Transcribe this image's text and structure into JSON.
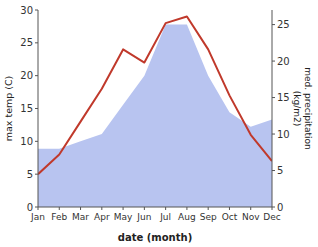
{
  "chart_data": {
    "type": "line",
    "categories": [
      "Jan",
      "Feb",
      "Mar",
      "Apr",
      "May",
      "Jun",
      "Jul",
      "Aug",
      "Sep",
      "Oct",
      "Nov",
      "Dec"
    ],
    "xlabel": "date (month)",
    "ylabel": "max temp (C)",
    "y2label": "med. precipitation\n(kg/m2)",
    "series": [
      {
        "type": "area",
        "color": "#b8c4f0",
        "axis": "y2",
        "values": [
          8,
          8,
          9,
          10,
          14,
          18,
          25,
          25,
          18,
          13,
          11,
          12
        ]
      },
      {
        "type": "line",
        "color": "#c0392b",
        "values": [
          5,
          8,
          13,
          18,
          24,
          22,
          28,
          29,
          24,
          17,
          11,
          7
        ]
      }
    ],
    "ylim": [
      0,
      30
    ],
    "yticks": [
      0,
      5,
      10,
      15,
      20,
      25,
      30
    ],
    "y2lim": [
      0,
      27
    ],
    "y2ticks": [
      0,
      5,
      10,
      15,
      20,
      25
    ]
  }
}
